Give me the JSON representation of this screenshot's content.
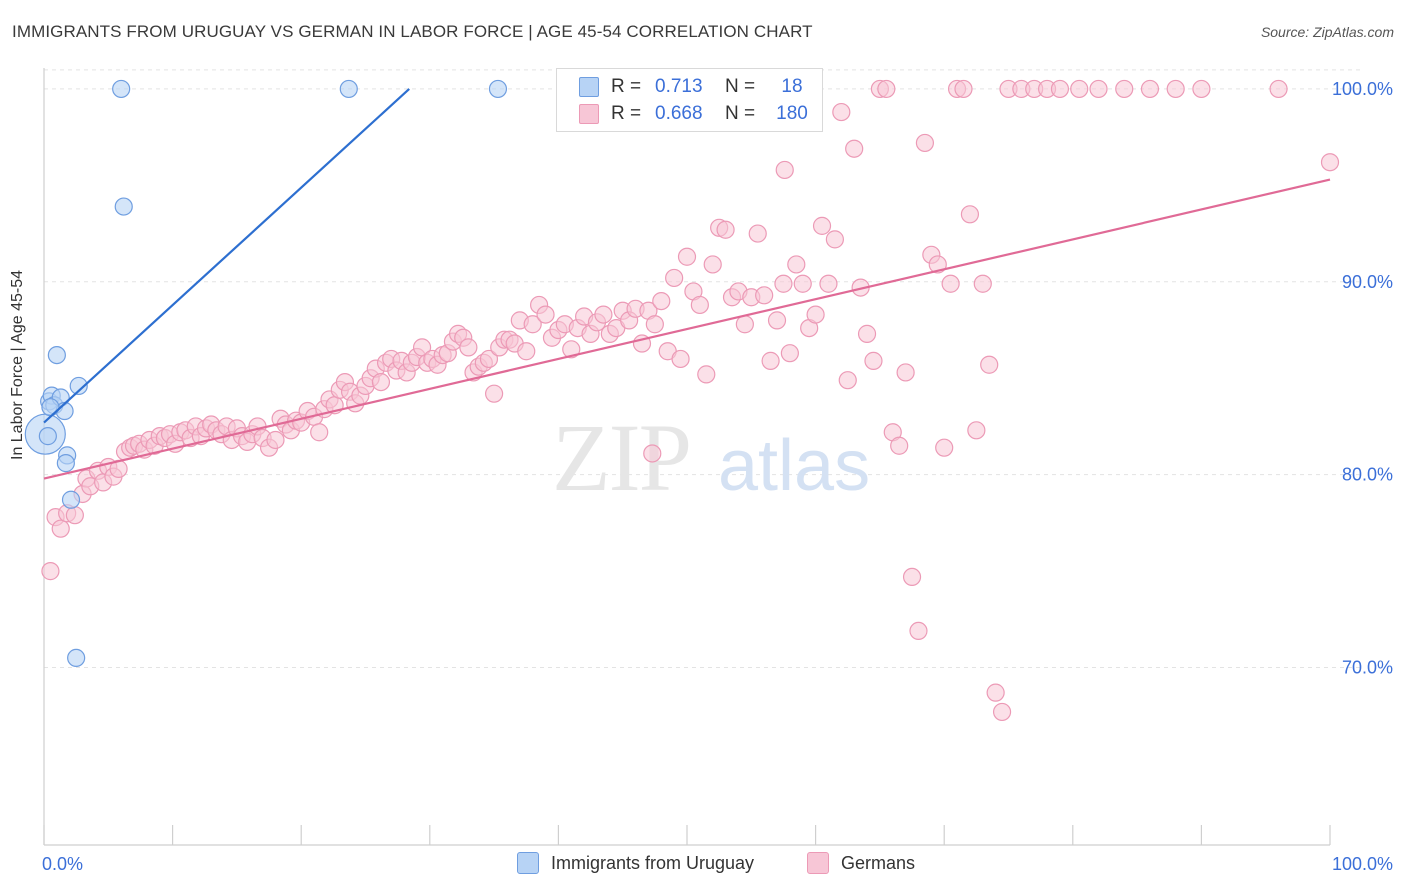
{
  "header": {
    "title": "IMMIGRANTS FROM URUGUAY VS GERMAN IN LABOR FORCE | AGE 45-54 CORRELATION CHART",
    "source": "Source: ZipAtlas.com"
  },
  "watermark": {
    "zip": "ZIP",
    "atlas": "atlas"
  },
  "legend": {
    "series1": {
      "r_label": "R =",
      "r_value": "0.713",
      "n_label": "N =",
      "n_value": "18"
    },
    "series2": {
      "r_label": "R =",
      "r_value": "0.668",
      "n_label": "N =",
      "n_value": "180"
    }
  },
  "bottom_legend": {
    "series1": "Immigrants from Uruguay",
    "series2": "Germans"
  },
  "colors": {
    "uruguay_fill": "#b7d3f5",
    "uruguay_stroke": "#6f9ee0",
    "uruguay_line": "#2d6fd0",
    "german_fill": "#f7c6d6",
    "german_stroke": "#ec9ab6",
    "german_line": "#e06a96",
    "tick_label": "#3b6fd8",
    "grid": "#e3e3e3"
  },
  "chart_data": {
    "type": "scatter",
    "title": "IMMIGRANTS FROM URUGUAY VS GERMAN IN LABOR FORCE | AGE 45-54 CORRELATION CHART",
    "xlabel": "",
    "ylabel": "In Labor Force | Age 45-54",
    "xlim": [
      0,
      100
    ],
    "ylim": [
      60.8,
      101.5
    ],
    "x_tick_labels": [
      "0.0%",
      "100.0%"
    ],
    "y_ticks": [
      70,
      80,
      90,
      100
    ],
    "y_tick_labels": [
      "70.0%",
      "80.0%",
      "90.0%",
      "100.0%"
    ],
    "grid": true,
    "legend_position": "top-center",
    "series": [
      {
        "name": "Immigrants from Uruguay",
        "r": 0.713,
        "n": 18,
        "trend": {
          "x": [
            0,
            28.4
          ],
          "y": [
            82.7,
            100.0
          ]
        },
        "points": [
          [
            0.1,
            82.1
          ],
          [
            0.4,
            83.8
          ],
          [
            0.6,
            84.1
          ],
          [
            0.8,
            83.6
          ],
          [
            1.0,
            86.2
          ],
          [
            1.3,
            84.0
          ],
          [
            1.6,
            83.3
          ],
          [
            1.8,
            81.0
          ],
          [
            1.7,
            80.6
          ],
          [
            2.1,
            78.7
          ],
          [
            2.5,
            70.5
          ],
          [
            2.7,
            84.6
          ],
          [
            6.0,
            100.0
          ],
          [
            6.2,
            93.9
          ],
          [
            23.7,
            100.0
          ],
          [
            35.3,
            100.0
          ],
          [
            0.3,
            82.0
          ],
          [
            0.5,
            83.5
          ]
        ]
      },
      {
        "name": "Germans",
        "r": 0.668,
        "n": 180,
        "trend": {
          "x": [
            0,
            100
          ],
          "y": [
            79.8,
            95.3
          ]
        },
        "points": [
          [
            0.5,
            75.0
          ],
          [
            0.9,
            77.8
          ],
          [
            1.3,
            77.2
          ],
          [
            1.8,
            78.0
          ],
          [
            2.4,
            77.9
          ],
          [
            3.0,
            79.0
          ],
          [
            3.3,
            79.8
          ],
          [
            3.6,
            79.4
          ],
          [
            4.2,
            80.2
          ],
          [
            4.6,
            79.6
          ],
          [
            5.0,
            80.4
          ],
          [
            5.4,
            79.9
          ],
          [
            5.8,
            80.3
          ],
          [
            6.3,
            81.2
          ],
          [
            6.7,
            81.4
          ],
          [
            7.0,
            81.5
          ],
          [
            7.4,
            81.6
          ],
          [
            7.8,
            81.3
          ],
          [
            8.2,
            81.8
          ],
          [
            8.6,
            81.5
          ],
          [
            9.0,
            82.0
          ],
          [
            9.4,
            81.9
          ],
          [
            9.8,
            82.1
          ],
          [
            10.2,
            81.6
          ],
          [
            10.6,
            82.2
          ],
          [
            11.0,
            82.3
          ],
          [
            11.4,
            81.9
          ],
          [
            11.8,
            82.5
          ],
          [
            12.2,
            82.0
          ],
          [
            12.6,
            82.4
          ],
          [
            13.0,
            82.6
          ],
          [
            13.4,
            82.3
          ],
          [
            13.8,
            82.1
          ],
          [
            14.2,
            82.5
          ],
          [
            14.6,
            81.8
          ],
          [
            15.0,
            82.4
          ],
          [
            15.4,
            82.0
          ],
          [
            15.8,
            81.7
          ],
          [
            16.2,
            82.1
          ],
          [
            16.6,
            82.5
          ],
          [
            17.0,
            81.9
          ],
          [
            17.5,
            81.4
          ],
          [
            18.0,
            81.8
          ],
          [
            18.4,
            82.9
          ],
          [
            18.8,
            82.6
          ],
          [
            19.2,
            82.3
          ],
          [
            19.6,
            82.8
          ],
          [
            20.0,
            82.7
          ],
          [
            20.5,
            83.3
          ],
          [
            21.0,
            83.0
          ],
          [
            21.4,
            82.2
          ],
          [
            21.8,
            83.4
          ],
          [
            22.2,
            83.9
          ],
          [
            22.6,
            83.6
          ],
          [
            23.0,
            84.4
          ],
          [
            23.4,
            84.8
          ],
          [
            23.8,
            84.3
          ],
          [
            24.2,
            83.7
          ],
          [
            24.6,
            84.1
          ],
          [
            25.0,
            84.6
          ],
          [
            25.4,
            85.0
          ],
          [
            25.8,
            85.5
          ],
          [
            26.2,
            84.8
          ],
          [
            26.6,
            85.8
          ],
          [
            27.0,
            86.0
          ],
          [
            27.4,
            85.4
          ],
          [
            27.8,
            85.9
          ],
          [
            28.2,
            85.3
          ],
          [
            28.6,
            85.8
          ],
          [
            29.0,
            86.1
          ],
          [
            29.4,
            86.6
          ],
          [
            29.8,
            85.8
          ],
          [
            30.2,
            86.0
          ],
          [
            30.6,
            85.7
          ],
          [
            31.0,
            86.2
          ],
          [
            31.4,
            86.3
          ],
          [
            31.8,
            86.9
          ],
          [
            32.2,
            87.3
          ],
          [
            32.6,
            87.1
          ],
          [
            33.0,
            86.6
          ],
          [
            33.4,
            85.3
          ],
          [
            33.8,
            85.6
          ],
          [
            34.2,
            85.8
          ],
          [
            34.6,
            86.0
          ],
          [
            35.0,
            84.2
          ],
          [
            35.4,
            86.6
          ],
          [
            35.8,
            87.0
          ],
          [
            36.2,
            87.0
          ],
          [
            36.6,
            86.8
          ],
          [
            37.0,
            88.0
          ],
          [
            37.5,
            86.4
          ],
          [
            38.0,
            87.8
          ],
          [
            38.5,
            88.8
          ],
          [
            39.0,
            88.3
          ],
          [
            39.5,
            87.1
          ],
          [
            40.0,
            87.5
          ],
          [
            40.5,
            87.8
          ],
          [
            41.0,
            86.5
          ],
          [
            41.5,
            87.6
          ],
          [
            42.0,
            88.2
          ],
          [
            42.5,
            87.3
          ],
          [
            43.0,
            87.9
          ],
          [
            43.5,
            88.3
          ],
          [
            44.0,
            87.3
          ],
          [
            44.5,
            87.6
          ],
          [
            45.0,
            88.5
          ],
          [
            45.5,
            88.0
          ],
          [
            46.0,
            88.6
          ],
          [
            46.5,
            86.8
          ],
          [
            47.0,
            88.5
          ],
          [
            47.5,
            87.8
          ],
          [
            48.0,
            89.0
          ],
          [
            48.5,
            86.4
          ],
          [
            49.0,
            90.2
          ],
          [
            49.5,
            86.0
          ],
          [
            50.0,
            91.3
          ],
          [
            50.5,
            89.5
          ],
          [
            51.0,
            88.8
          ],
          [
            51.5,
            85.2
          ],
          [
            52.0,
            90.9
          ],
          [
            52.5,
            92.8
          ],
          [
            53.0,
            92.7
          ],
          [
            53.5,
            89.2
          ],
          [
            54.0,
            89.5
          ],
          [
            54.5,
            87.8
          ],
          [
            55.0,
            89.2
          ],
          [
            55.5,
            92.5
          ],
          [
            56.0,
            89.3
          ],
          [
            56.5,
            85.9
          ],
          [
            57.0,
            88.0
          ],
          [
            57.5,
            89.9
          ],
          [
            58.0,
            86.3
          ],
          [
            58.5,
            90.9
          ],
          [
            59.0,
            89.9
          ],
          [
            59.5,
            87.6
          ],
          [
            60.0,
            88.3
          ],
          [
            60.5,
            92.9
          ],
          [
            61.0,
            89.9
          ],
          [
            61.5,
            92.2
          ],
          [
            62.0,
            98.8
          ],
          [
            62.5,
            84.9
          ],
          [
            63.0,
            96.9
          ],
          [
            63.5,
            89.7
          ],
          [
            64.0,
            87.3
          ],
          [
            64.5,
            85.9
          ],
          [
            65.0,
            100.0
          ],
          [
            65.5,
            100.0
          ],
          [
            66.0,
            82.2
          ],
          [
            66.5,
            81.5
          ],
          [
            67.0,
            85.3
          ],
          [
            67.5,
            74.7
          ],
          [
            68.0,
            71.9
          ],
          [
            68.5,
            97.2
          ],
          [
            69.0,
            91.4
          ],
          [
            69.5,
            90.9
          ],
          [
            70.0,
            81.4
          ],
          [
            70.5,
            89.9
          ],
          [
            71.0,
            100.0
          ],
          [
            71.5,
            100.0
          ],
          [
            72.0,
            93.5
          ],
          [
            72.5,
            82.3
          ],
          [
            73.0,
            89.9
          ],
          [
            73.5,
            85.7
          ],
          [
            74.0,
            68.7
          ],
          [
            74.5,
            67.7
          ],
          [
            75.0,
            100.0
          ],
          [
            76.0,
            100.0
          ],
          [
            77.0,
            100.0
          ],
          [
            78.0,
            100.0
          ],
          [
            79.0,
            100.0
          ],
          [
            80.5,
            100.0
          ],
          [
            82.0,
            100.0
          ],
          [
            84.0,
            100.0
          ],
          [
            86.0,
            100.0
          ],
          [
            88.0,
            100.0
          ],
          [
            90.0,
            100.0
          ],
          [
            96.0,
            100.0
          ],
          [
            100.0,
            96.2
          ],
          [
            57.6,
            95.8
          ],
          [
            47.3,
            81.1
          ]
        ]
      }
    ]
  }
}
